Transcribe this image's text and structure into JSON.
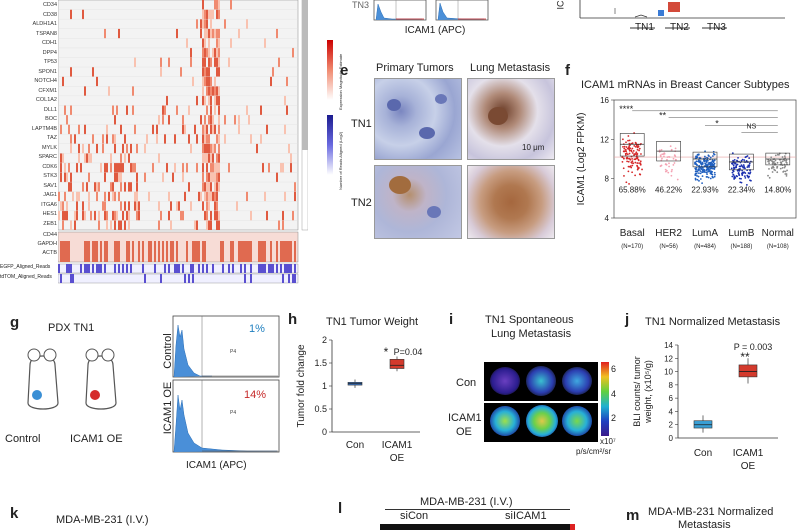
{
  "panels": {
    "a": {
      "genes_top": [
        "CD34",
        "CD38",
        "ALDH1A1",
        "TSPAN8",
        "CDH1",
        "DPP4",
        "TP53",
        "SPON1",
        "NOTCH4",
        "CFXM1",
        "COL1A2",
        "DLL1",
        "BOC",
        "LAPTM4B",
        "TAZ",
        "MYLK",
        "SPARC",
        "CDK6",
        "STK3",
        "SAV1",
        "JAG1",
        "ITGA6",
        "HES1",
        "ZEB1"
      ],
      "genes_bottom": [
        "CD44",
        "GAPDH",
        "ACTB"
      ],
      "track_labels": [
        "EGFP_Aligned_Reads",
        "tdTOM_Aligned_Reads"
      ],
      "scale_label_1": "Expression Magnitude Estimate",
      "scale_label_2": "Number of Reads Aligned (Log2)"
    },
    "top_mid": {
      "xlabel": "ICAM1 (APC)",
      "partial_label": "TN3"
    },
    "top_right": {
      "groups": [
        "TN1",
        "TN2",
        "TN3"
      ],
      "partial_ylabel": "IC"
    },
    "e": {
      "letter": "e",
      "col1": "Primary Tumors",
      "col2": "Lung Metastasis",
      "row1": "TN1",
      "row2": "TN2",
      "scalebar": "10 μm"
    },
    "f": {
      "letter": "f",
      "title": "ICAM1 mRNAs in Breast Cancer Subtypes",
      "ylabel": "ICAM1 (Log2 FPKM)",
      "yticks": [
        "16",
        "12",
        "8",
        "4"
      ],
      "sig": [
        "****",
        "**",
        "*",
        "NS"
      ],
      "categories": [
        "Basal",
        "HER2",
        "LumA",
        "LumB",
        "Normal"
      ],
      "ns": [
        "(N=170)",
        "(N=56)",
        "(N=484)",
        "(N=188)",
        "(N=108)"
      ],
      "percents": [
        "65.88%",
        "46.22%",
        "22.93%",
        "22.34%",
        "14.80%"
      ],
      "colors": [
        "#d62728",
        "#f4a3b3",
        "#1f5fbf",
        "#1a2fb0",
        "#888888"
      ]
    },
    "g": {
      "letter": "g",
      "title": "PDX TN1",
      "mouse1": "Control",
      "mouse2": "ICAM1 OE",
      "row1": "Control",
      "row2": "ICAM1 OE",
      "pct1": "1%",
      "pct2": "14%",
      "gate": "P4",
      "xlabel": "ICAM1 (APC)"
    },
    "h": {
      "letter": "h",
      "title": "TN1 Tumor Weight",
      "ylabel": "Tumor fold change",
      "yticks": [
        "2",
        "1.5",
        "1",
        "0.5",
        "0"
      ],
      "pvalue": "P=0.04",
      "star": "*",
      "categories": [
        "Con",
        "ICAM1\nOE"
      ],
      "cat1": "Con",
      "cat2a": "ICAM1",
      "cat2b": "OE"
    },
    "i": {
      "letter": "i",
      "title1": "TN1 Spontaneous",
      "title2": "Lung Metastasis",
      "row1": "Con",
      "row2a": "ICAM1",
      "row2b": "OE",
      "cbar_ticks": [
        "6",
        "4",
        "2"
      ],
      "unit1": "x10⁷",
      "unit2": "p/s/cm²/sr"
    },
    "j": {
      "letter": "j",
      "title": "TN1 Normalized Metastasis",
      "ylabel1": "BLI counts/ tumor",
      "ylabel2": "weight, (x10⁵/g)",
      "yticks": [
        "14",
        "12",
        "10",
        "8",
        "6",
        "4",
        "2",
        "0"
      ],
      "pvalue": "P = 0.003",
      "star": "**",
      "cat1": "Con",
      "cat2a": "ICAM1",
      "cat2b": "OE"
    },
    "k": {
      "letter": "k",
      "title": "MDA-MB-231 (I.V.)"
    },
    "l": {
      "letter": "l",
      "title": "MDA-MB-231 (I.V.)",
      "col1": "siCon",
      "col2": "siICAM1"
    },
    "m": {
      "letter": "m",
      "title1": "MDA-MB-231 Normalized",
      "title2": "Metastasis"
    }
  },
  "chart_data": [
    {
      "type": "box",
      "title": "ICAM1 mRNAs in Breast Cancer Subtypes",
      "ylabel": "ICAM1 (Log2 FPKM)",
      "categories": [
        "Basal",
        "HER2",
        "LumA",
        "LumB",
        "Normal"
      ],
      "medians": [
        11.5,
        10.8,
        10.0,
        9.7,
        10.0
      ],
      "q1": [
        10.3,
        9.8,
        9.2,
        8.9,
        9.4
      ],
      "q3": [
        12.6,
        11.8,
        10.7,
        10.5,
        10.6
      ],
      "ylim": [
        4,
        16
      ]
    },
    {
      "type": "box",
      "title": "TN1 Tumor Weight",
      "ylabel": "Tumor fold change",
      "categories": [
        "Con",
        "ICAM1 OE"
      ],
      "medians": [
        1.05,
        1.45
      ],
      "q1": [
        1.02,
        1.38
      ],
      "q3": [
        1.08,
        1.58
      ],
      "ylim": [
        0,
        2
      ]
    },
    {
      "type": "box",
      "title": "TN1 Normalized Metastasis",
      "ylabel": "BLI counts/ tumor weight, (x10⁵/g)",
      "categories": [
        "Con",
        "ICAM1 OE"
      ],
      "medians": [
        2.0,
        10.0
      ],
      "q1": [
        1.5,
        9.2
      ],
      "q3": [
        2.6,
        11.0
      ],
      "ylim": [
        0,
        14
      ]
    }
  ]
}
